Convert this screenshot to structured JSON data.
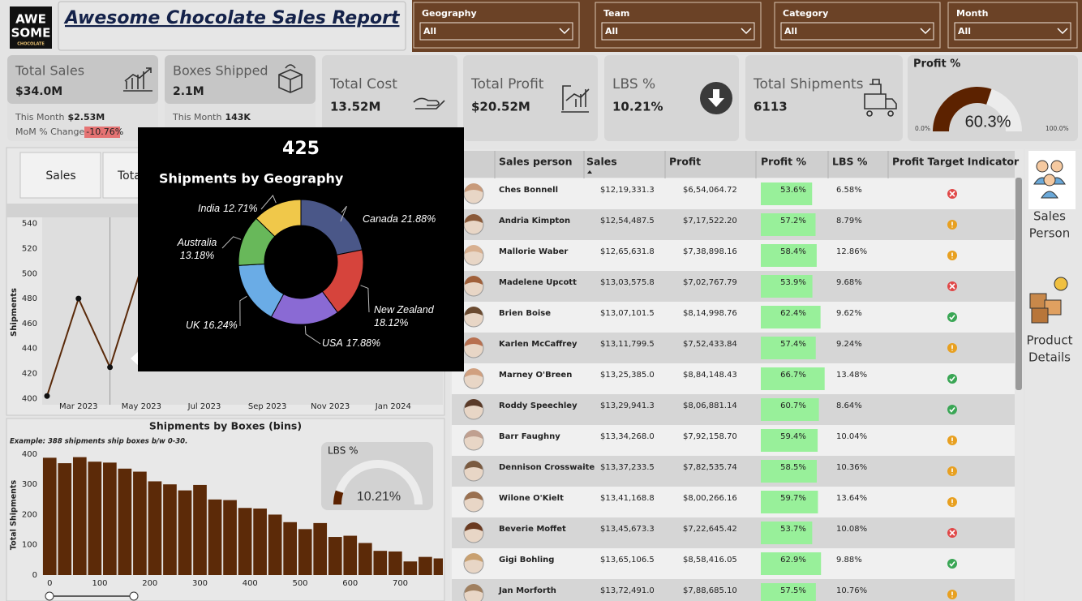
{
  "header": {
    "logo": [
      "AWE",
      "SOME",
      "CHOCOLATE"
    ],
    "title": "Awesome Chocolate Sales Report"
  },
  "filters": [
    {
      "label": "Geography",
      "value": "All"
    },
    {
      "label": "Team",
      "value": "All"
    },
    {
      "label": "Category",
      "value": "All"
    },
    {
      "label": "Month",
      "value": "All"
    }
  ],
  "kpis": [
    {
      "title": "Total Sales",
      "value": "$34.0M",
      "this_month_label": "This Month",
      "this_month": "$2.53M",
      "mom_label": "MoM % Change",
      "mom": "-10.76%"
    },
    {
      "title": "Boxes Shipped",
      "value": "2.1M",
      "this_month_label": "This Month",
      "this_month": "143K"
    },
    {
      "title": "Total Cost",
      "value": "13.52M"
    },
    {
      "title": "Total Profit",
      "value": "$20.52M"
    },
    {
      "title": "LBS %",
      "value": "10.21%"
    },
    {
      "title": "Total Shipments",
      "value": "6113"
    }
  ],
  "tabs": [
    "Sales",
    "Tota"
  ],
  "chart_data": [
    {
      "type": "line",
      "ylabel": "Shipments",
      "categories": [
        null,
        "Mar 2023",
        null,
        "May 2023",
        null,
        "Jul 2023",
        null,
        "Sep 2023",
        null,
        "Nov 2023",
        null,
        "Jan 2024",
        null
      ],
      "values": [
        402,
        480,
        425,
        505,
        null,
        null,
        null,
        null,
        null,
        null,
        null,
        null,
        null
      ],
      "color": "#5a2a0a",
      "marker_color": "#111111",
      "ylim": [
        395,
        545
      ],
      "yticks": [
        400,
        420,
        440,
        460,
        480,
        500,
        520,
        540
      ]
    },
    {
      "type": "bar",
      "title": "Shipments by Boxes (bins)",
      "annotation": "Example: 388 shipments ship boxes b/w 0-30.",
      "ylabel": "Total Shipments",
      "x": [
        0,
        30,
        60,
        90,
        120,
        150,
        180,
        210,
        240,
        270,
        300,
        330,
        360,
        390,
        420,
        450,
        480,
        510,
        540,
        570,
        600,
        630,
        660,
        690,
        720,
        750,
        780
      ],
      "values": [
        388,
        370,
        390,
        375,
        372,
        352,
        342,
        310,
        300,
        280,
        298,
        250,
        248,
        222,
        220,
        200,
        175,
        152,
        172,
        126,
        130,
        106,
        80,
        78,
        45,
        60,
        55
      ],
      "color": "#5c2a08",
      "xlim": [
        -15,
        785
      ],
      "xticks": [
        0,
        100,
        200,
        300,
        400,
        500,
        600,
        700
      ],
      "ylim": [
        0,
        440
      ],
      "yticks": [
        0,
        100,
        200,
        300,
        400
      ]
    },
    {
      "type": "donut",
      "title": "Shipments by Geography",
      "categories": [
        "Canada",
        "New Zealand",
        "USA",
        "UK",
        "Australia",
        "India"
      ],
      "values": [
        21.88,
        18.12,
        17.88,
        16.24,
        13.18,
        12.71
      ],
      "value_labels": [
        "21.88%",
        "18.12%",
        "17.88%",
        "16.24%",
        "13.18%",
        "12.71%"
      ],
      "colors": [
        "#4a5788",
        "#d6443c",
        "#8a6ad4",
        "#6aace6",
        "#68b85a",
        "#f0c84a"
      ]
    },
    {
      "type": "gauge",
      "title": "Profit %",
      "value": 60.3,
      "value_label": "60.3%",
      "min": {
        "value": 0,
        "label": "0.0%"
      },
      "max": {
        "value": 100,
        "label": "100.0%"
      },
      "color": "#5c2200"
    },
    {
      "type": "gauge",
      "title": "LBS %",
      "value": 10.21,
      "value_label": "10.21%",
      "range": [
        0,
        100
      ],
      "color": "#5c2200"
    }
  ],
  "table": {
    "columns": [
      "Sales person",
      "Sales",
      "Profit",
      "Profit %",
      "LBS %",
      "Profit Target Indicator"
    ],
    "rows": [
      {
        "name": "Ches Bonnell",
        "sales": "$12,19,331.3",
        "profit": "$6,54,064.72",
        "profit_pct": {
          "value": 53.6,
          "label": "53.6%"
        },
        "lbs_pct": "6.58%",
        "indicator": "red"
      },
      {
        "name": "Andria Kimpton",
        "sales": "$12,54,487.5",
        "profit": "$7,17,522.20",
        "profit_pct": {
          "value": 57.2,
          "label": "57.2%"
        },
        "lbs_pct": "8.79%",
        "indicator": "amber"
      },
      {
        "name": "Mallorie Waber",
        "sales": "$12,65,631.8",
        "profit": "$7,38,898.16",
        "profit_pct": {
          "value": 58.4,
          "label": "58.4%"
        },
        "lbs_pct": "12.86%",
        "indicator": "amber"
      },
      {
        "name": "Madelene Upcott",
        "sales": "$13,03,575.8",
        "profit": "$7,02,767.79",
        "profit_pct": {
          "value": 53.9,
          "label": "53.9%"
        },
        "lbs_pct": "9.68%",
        "indicator": "red"
      },
      {
        "name": "Brien Boise",
        "sales": "$13,07,101.5",
        "profit": "$8,14,998.76",
        "profit_pct": {
          "value": 62.4,
          "label": "62.4%"
        },
        "lbs_pct": "9.62%",
        "indicator": "green"
      },
      {
        "name": "Karlen McCaffrey",
        "sales": "$13,11,799.5",
        "profit": "$7,52,433.84",
        "profit_pct": {
          "value": 57.4,
          "label": "57.4%"
        },
        "lbs_pct": "9.24%",
        "indicator": "amber"
      },
      {
        "name": "Marney O'Breen",
        "sales": "$13,25,385.0",
        "profit": "$8,84,148.43",
        "profit_pct": {
          "value": 66.7,
          "label": "66.7%"
        },
        "lbs_pct": "13.48%",
        "indicator": "green"
      },
      {
        "name": "Roddy Speechley",
        "sales": "$13,29,941.3",
        "profit": "$8,06,881.14",
        "profit_pct": {
          "value": 60.7,
          "label": "60.7%"
        },
        "lbs_pct": "8.64%",
        "indicator": "green"
      },
      {
        "name": "Barr Faughny",
        "sales": "$13,34,268.0",
        "profit": "$7,92,158.70",
        "profit_pct": {
          "value": 59.4,
          "label": "59.4%"
        },
        "lbs_pct": "10.04%",
        "indicator": "amber"
      },
      {
        "name": "Dennison Crosswaite",
        "sales": "$13,37,233.5",
        "profit": "$7,82,535.74",
        "profit_pct": {
          "value": 58.5,
          "label": "58.5%"
        },
        "lbs_pct": "10.36%",
        "indicator": "amber"
      },
      {
        "name": "Wilone O'Kielt",
        "sales": "$13,41,168.8",
        "profit": "$8,00,266.16",
        "profit_pct": {
          "value": 59.7,
          "label": "59.7%"
        },
        "lbs_pct": "13.64%",
        "indicator": "amber"
      },
      {
        "name": "Beverie Moffet",
        "sales": "$13,45,673.3",
        "profit": "$7,22,645.42",
        "profit_pct": {
          "value": 53.7,
          "label": "53.7%"
        },
        "lbs_pct": "10.08%",
        "indicator": "red"
      },
      {
        "name": "Gigi Bohling",
        "sales": "$13,65,106.5",
        "profit": "$8,58,416.05",
        "profit_pct": {
          "value": 62.9,
          "label": "62.9%"
        },
        "lbs_pct": "9.88%",
        "indicator": "green"
      },
      {
        "name": "Jan Morforth",
        "sales": "$13,72,491.0",
        "profit": "$7,88,685.10",
        "profit_pct": {
          "value": 57.5,
          "label": "57.5%"
        },
        "lbs_pct": "10.76%",
        "indicator": "amber"
      }
    ]
  },
  "nav": [
    {
      "label": [
        "Sales",
        "Person"
      ]
    },
    {
      "label": [
        "Product",
        "Details"
      ]
    }
  ]
}
